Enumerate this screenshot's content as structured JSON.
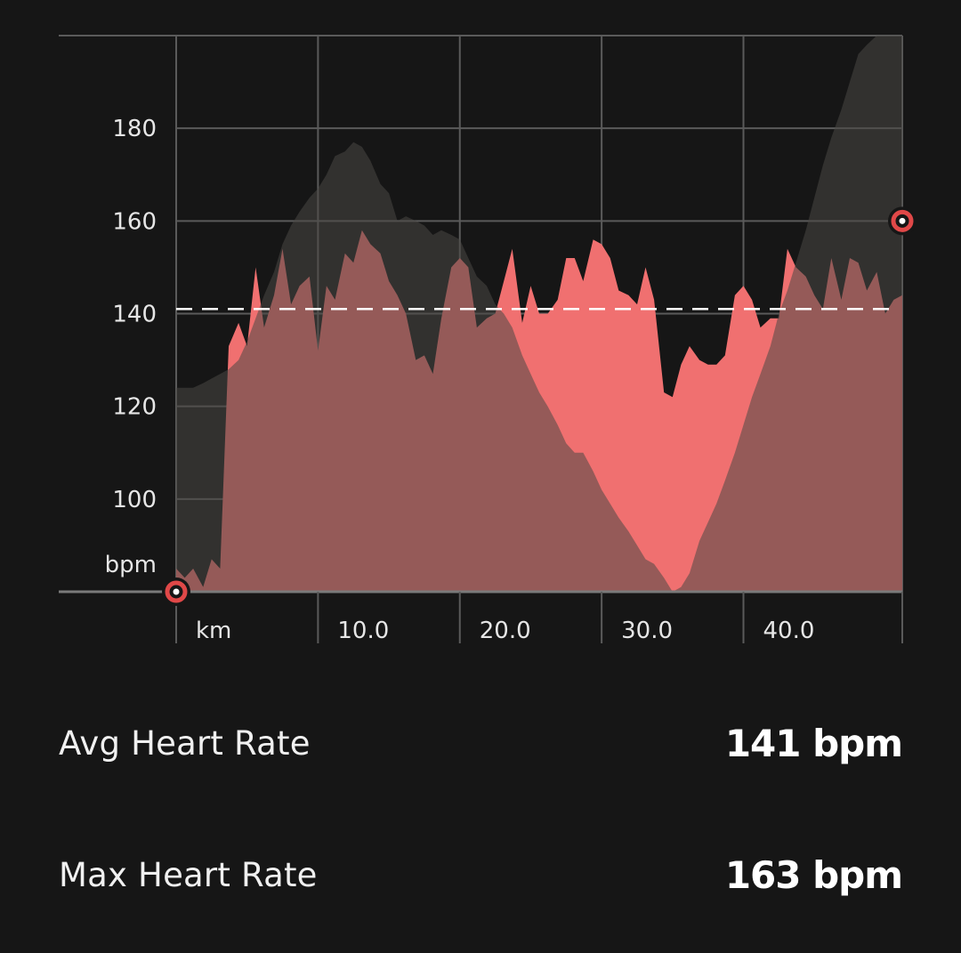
{
  "chart_data": {
    "type": "area",
    "x_unit_label": "km",
    "y_unit_label": "bpm",
    "x_ticks": [
      "10.0",
      "20.0",
      "30.0",
      "40.0"
    ],
    "x_tick_values": [
      10,
      20,
      30,
      40
    ],
    "y_ticks": [
      "100",
      "120",
      "140",
      "160",
      "180"
    ],
    "y_tick_values": [
      100,
      120,
      140,
      160,
      180
    ],
    "xlim": [
      0,
      51.2
    ],
    "ylim": [
      80,
      200
    ],
    "grid": true,
    "average_line": 141,
    "colors": {
      "heart_rate_fill": "#f07070",
      "elevation_fill": "#4a4845",
      "background": "#161616",
      "grid": "#5a5a5a",
      "marker_ring": "#e04848"
    },
    "series": [
      {
        "values": [
          [
            0,
            85
          ],
          [
            0.6,
            83
          ],
          [
            1.2,
            85
          ],
          [
            1.9,
            81
          ],
          [
            2.5,
            87
          ],
          [
            3.1,
            85
          ],
          [
            3.7,
            133
          ],
          [
            4.4,
            138
          ],
          [
            5.0,
            133
          ],
          [
            5.6,
            150
          ],
          [
            6.2,
            137
          ],
          [
            6.9,
            144
          ],
          [
            7.5,
            154
          ],
          [
            8.1,
            142
          ],
          [
            8.7,
            146
          ],
          [
            9.4,
            148
          ],
          [
            10.0,
            132
          ],
          [
            10.6,
            146
          ],
          [
            11.2,
            143
          ],
          [
            11.9,
            153
          ],
          [
            12.5,
            151
          ],
          [
            13.1,
            158
          ],
          [
            13.7,
            155
          ],
          [
            14.4,
            153
          ],
          [
            15.0,
            147
          ],
          [
            15.6,
            144
          ],
          [
            16.2,
            140
          ],
          [
            16.9,
            130
          ],
          [
            17.5,
            131
          ],
          [
            18.1,
            127
          ],
          [
            18.7,
            139
          ],
          [
            19.4,
            150
          ],
          [
            20.0,
            152
          ],
          [
            20.6,
            150
          ],
          [
            21.2,
            137
          ],
          [
            21.9,
            139
          ],
          [
            22.5,
            140
          ],
          [
            23.1,
            147
          ],
          [
            23.7,
            154
          ],
          [
            24.4,
            138
          ],
          [
            25.0,
            146
          ],
          [
            25.6,
            140
          ],
          [
            26.2,
            140
          ],
          [
            26.9,
            143
          ],
          [
            27.5,
            152
          ],
          [
            28.1,
            152
          ],
          [
            28.7,
            147
          ],
          [
            29.4,
            156
          ],
          [
            30.0,
            155
          ],
          [
            30.6,
            152
          ],
          [
            31.2,
            145
          ],
          [
            31.9,
            144
          ],
          [
            32.5,
            142
          ],
          [
            33.1,
            150
          ],
          [
            33.7,
            143
          ],
          [
            34.4,
            123
          ],
          [
            35.0,
            122
          ],
          [
            35.6,
            129
          ],
          [
            36.2,
            133
          ],
          [
            36.9,
            130
          ],
          [
            37.5,
            129
          ],
          [
            38.1,
            129
          ],
          [
            38.7,
            131
          ],
          [
            39.4,
            144
          ],
          [
            40.0,
            146
          ],
          [
            40.6,
            143
          ],
          [
            41.2,
            137
          ],
          [
            41.9,
            139
          ],
          [
            42.5,
            139
          ],
          [
            43.1,
            154
          ],
          [
            43.7,
            150
          ],
          [
            44.4,
            148
          ],
          [
            45.0,
            144
          ],
          [
            45.6,
            141
          ],
          [
            46.2,
            152
          ],
          [
            46.9,
            143
          ],
          [
            47.5,
            152
          ],
          [
            48.1,
            151
          ],
          [
            48.7,
            145
          ],
          [
            49.4,
            149
          ],
          [
            50.0,
            140
          ],
          [
            50.6,
            143
          ],
          [
            51.2,
            144
          ]
        ]
      },
      {
        "values": [
          [
            0,
            124
          ],
          [
            0.6,
            124
          ],
          [
            1.2,
            124
          ],
          [
            1.9,
            125
          ],
          [
            2.5,
            126
          ],
          [
            3.1,
            127
          ],
          [
            3.7,
            128
          ],
          [
            4.4,
            130
          ],
          [
            5.0,
            134
          ],
          [
            5.6,
            139
          ],
          [
            6.2,
            144
          ],
          [
            6.9,
            149
          ],
          [
            7.5,
            155
          ],
          [
            8.1,
            159
          ],
          [
            8.7,
            162
          ],
          [
            9.4,
            165
          ],
          [
            10.0,
            167
          ],
          [
            10.6,
            170
          ],
          [
            11.2,
            174
          ],
          [
            11.9,
            175
          ],
          [
            12.5,
            177
          ],
          [
            13.1,
            176
          ],
          [
            13.7,
            173
          ],
          [
            14.4,
            168
          ],
          [
            15.0,
            166
          ],
          [
            15.6,
            160
          ],
          [
            16.2,
            161
          ],
          [
            16.9,
            160
          ],
          [
            17.5,
            159
          ],
          [
            18.1,
            157
          ],
          [
            18.7,
            158
          ],
          [
            19.4,
            157
          ],
          [
            20.0,
            156
          ],
          [
            20.6,
            152
          ],
          [
            21.2,
            148
          ],
          [
            21.9,
            146
          ],
          [
            22.5,
            142
          ],
          [
            23.1,
            140
          ],
          [
            23.7,
            137
          ],
          [
            24.4,
            131
          ],
          [
            25.0,
            127
          ],
          [
            25.6,
            123
          ],
          [
            26.2,
            120
          ],
          [
            26.9,
            116
          ],
          [
            27.5,
            112
          ],
          [
            28.1,
            110
          ],
          [
            28.7,
            110
          ],
          [
            29.4,
            106
          ],
          [
            30.0,
            102
          ],
          [
            30.6,
            99
          ],
          [
            31.2,
            96
          ],
          [
            31.9,
            93
          ],
          [
            32.5,
            90
          ],
          [
            33.1,
            87
          ],
          [
            33.7,
            86
          ],
          [
            34.4,
            83
          ],
          [
            35.0,
            80
          ],
          [
            35.6,
            81
          ],
          [
            36.2,
            84
          ],
          [
            36.9,
            91
          ],
          [
            37.5,
            95
          ],
          [
            38.1,
            99
          ],
          [
            38.7,
            104
          ],
          [
            39.4,
            110
          ],
          [
            40.0,
            116
          ],
          [
            40.6,
            122
          ],
          [
            41.2,
            127
          ],
          [
            41.9,
            133
          ],
          [
            42.5,
            140
          ],
          [
            43.1,
            145
          ],
          [
            43.7,
            151
          ],
          [
            44.4,
            158
          ],
          [
            45.0,
            165
          ],
          [
            45.6,
            172
          ],
          [
            46.2,
            178
          ],
          [
            46.9,
            184
          ],
          [
            47.5,
            190
          ],
          [
            48.1,
            196
          ],
          [
            48.7,
            198
          ],
          [
            49.4,
            200
          ],
          [
            50.0,
            200
          ],
          [
            50.6,
            200
          ],
          [
            51.2,
            200
          ]
        ]
      }
    ],
    "markers": [
      {
        "x": 0,
        "y": 80
      },
      {
        "x": 51.2,
        "y": 160
      }
    ]
  },
  "stats": [
    {
      "label": "Avg Heart Rate",
      "value": "141 bpm"
    },
    {
      "label": "Max Heart Rate",
      "value": "163 bpm"
    }
  ]
}
